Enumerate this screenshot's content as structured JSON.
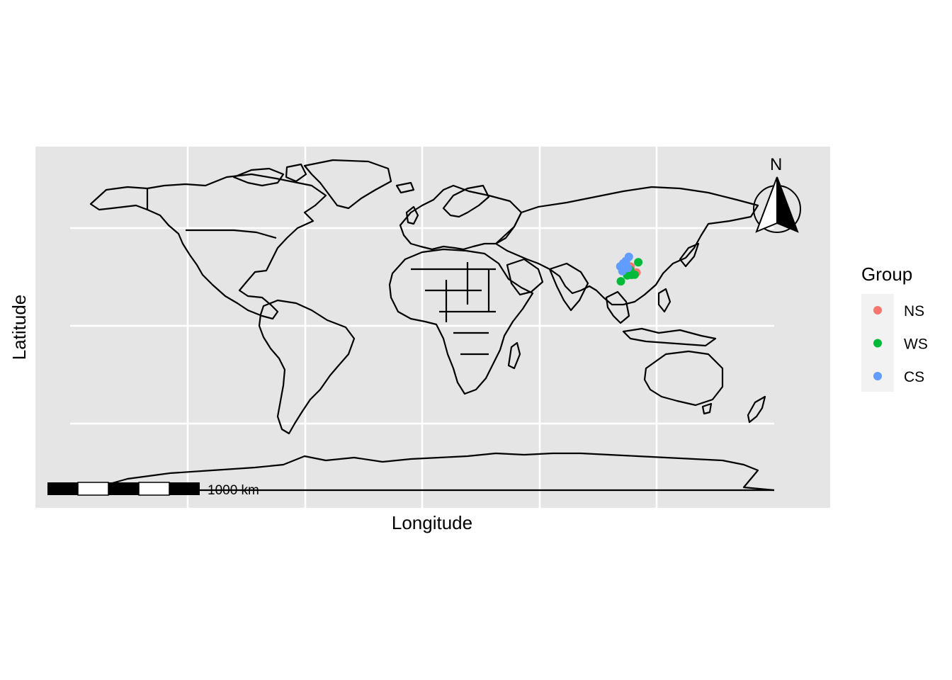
{
  "map": {
    "xlabel": "Longitude",
    "ylabel": "Latitude",
    "projection": "equirectangular world map (country borders)",
    "x_range": [
      -180,
      180
    ],
    "y_range": [
      -90,
      90
    ],
    "grid": true,
    "panel_background": "#e5e5e5",
    "gridline_color": "#ffffff",
    "coastline_color": "#000000"
  },
  "legend": {
    "title": "Group",
    "placement": "right",
    "items": [
      {
        "label": "NS",
        "color": "#F8766D"
      },
      {
        "label": "WS",
        "color": "#00BA38"
      },
      {
        "label": "CS",
        "color": "#619CFF"
      }
    ]
  },
  "scalebar": {
    "label": "1000 km"
  },
  "north_arrow": {
    "label": "N",
    "icon": "north-arrow-compass-icon"
  },
  "points": [
    {
      "group": "NS",
      "lon": 103.5,
      "lat": 31.5
    },
    {
      "group": "NS",
      "lon": 104.8,
      "lat": 30.6
    },
    {
      "group": "NS",
      "lon": 106.6,
      "lat": 30.1
    },
    {
      "group": "NS",
      "lon": 109.6,
      "lat": 27.1
    },
    {
      "group": "NS",
      "lon": 104.2,
      "lat": 29.0
    },
    {
      "group": "NS",
      "lon": 106.9,
      "lat": 27.8
    },
    {
      "group": "WS",
      "lon": 110.5,
      "lat": 32.3
    },
    {
      "group": "WS",
      "lon": 108.6,
      "lat": 26.0
    },
    {
      "group": "WS",
      "lon": 104.9,
      "lat": 25.6
    },
    {
      "group": "WS",
      "lon": 101.6,
      "lat": 22.6
    },
    {
      "group": "WS",
      "lon": 106.3,
      "lat": 28.4
    },
    {
      "group": "WS",
      "lon": 107.0,
      "lat": 25.9
    },
    {
      "group": "CS",
      "lon": 105.7,
      "lat": 35.1
    },
    {
      "group": "CS",
      "lon": 104.2,
      "lat": 33.0
    },
    {
      "group": "CS",
      "lon": 102.8,
      "lat": 31.7
    },
    {
      "group": "CS",
      "lon": 101.3,
      "lat": 30.2
    },
    {
      "group": "CS",
      "lon": 103.0,
      "lat": 28.8
    },
    {
      "group": "CS",
      "lon": 105.2,
      "lat": 29.4
    },
    {
      "group": "CS",
      "lon": 102.4,
      "lat": 27.8
    },
    {
      "group": "CS",
      "lon": 104.0,
      "lat": 31.1
    }
  ]
}
